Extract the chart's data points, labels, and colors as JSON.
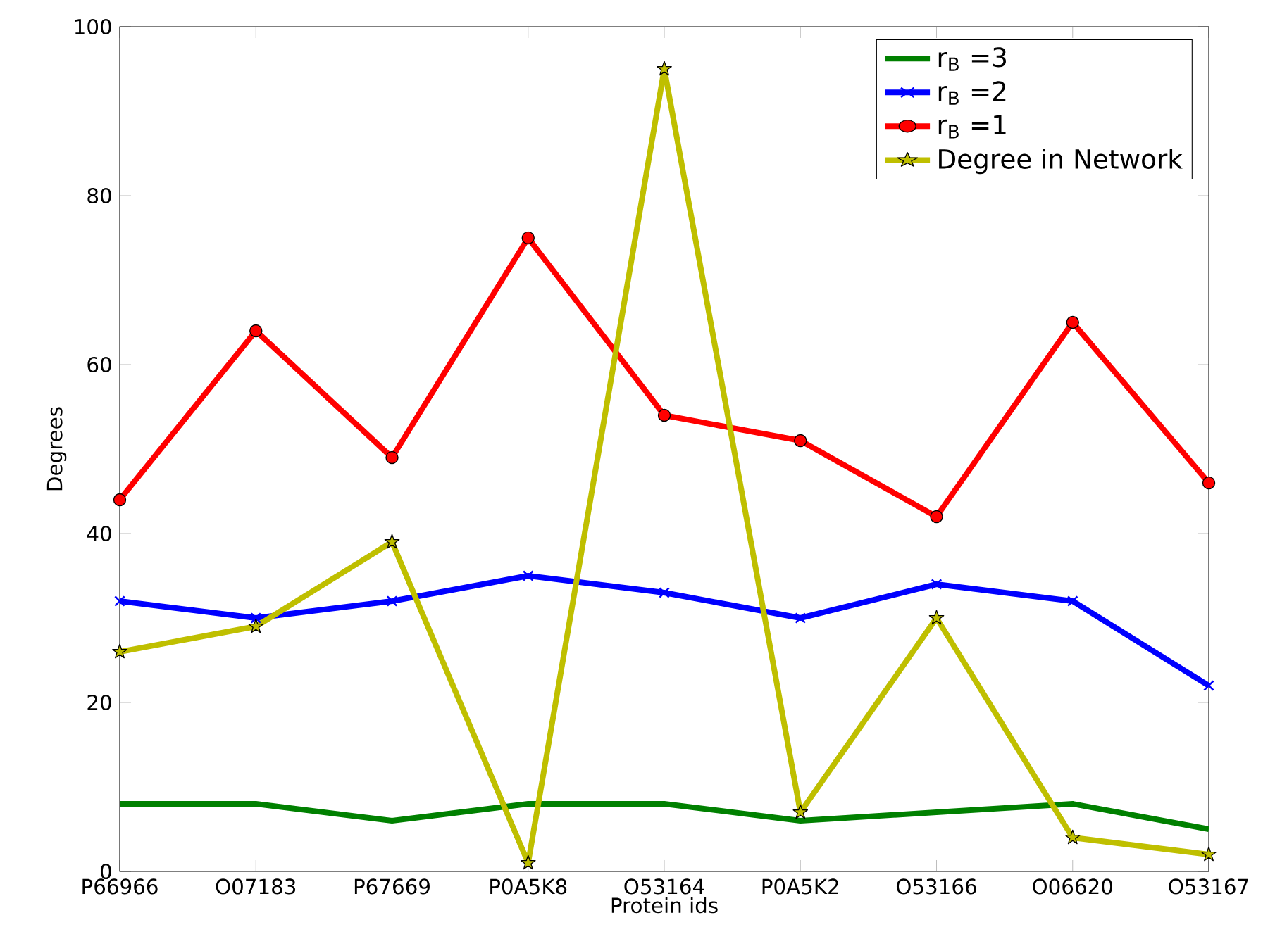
{
  "chart_data": {
    "type": "line",
    "xlabel": "Protein ids",
    "ylabel": "Degrees",
    "categories": [
      "P66966",
      "O07183",
      "P67669",
      "P0A5K8",
      "O53164",
      "P0A5K2",
      "O53166",
      "O06620",
      "O53167"
    ],
    "series": [
      {
        "name": "r$_{B}$ =3",
        "color": "#008000",
        "marker": "none",
        "values": [
          8,
          8,
          6,
          8,
          8,
          6,
          7,
          8,
          5
        ]
      },
      {
        "name": "r$_{B}$ =2",
        "color": "#0000ff",
        "marker": "cross",
        "values": [
          32,
          30,
          32,
          35,
          33,
          30,
          34,
          32,
          22
        ]
      },
      {
        "name": "r$_{B}$ =1",
        "color": "#ff0000",
        "marker": "circle",
        "values": [
          44,
          64,
          49,
          75,
          54,
          51,
          42,
          65,
          46
        ]
      },
      {
        "name": "Degree in Network",
        "color": "#bfbf00",
        "marker": "star",
        "values": [
          26,
          29,
          39,
          1,
          95,
          7,
          30,
          4,
          2
        ]
      }
    ],
    "ylim": [
      0,
      100
    ],
    "yticks": [
      0,
      20,
      40,
      60,
      80,
      100
    ],
    "legend": "top right",
    "grid": false
  }
}
